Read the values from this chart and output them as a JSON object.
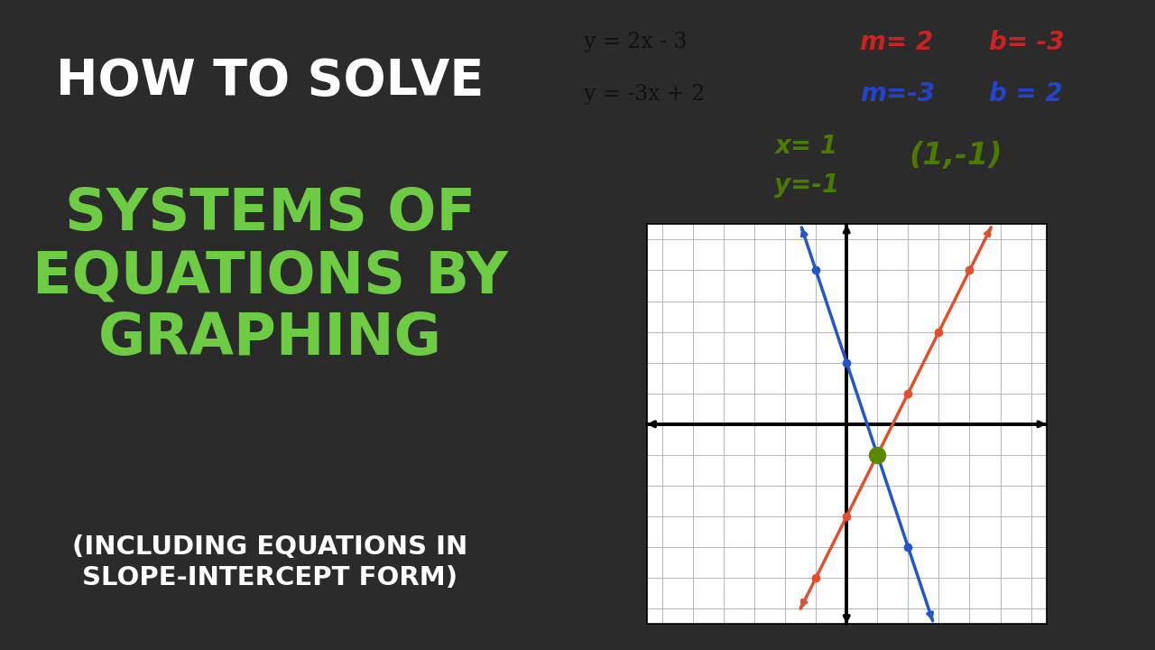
{
  "bg_left": "#2b2b2b",
  "bg_right": "#ffffff",
  "title_line1": "HOW TO SOLVE",
  "title_line2": "SYSTEMS OF\nEQUATIONS BY\nGRAPHING",
  "title_line3": "(INCLUDING EQUATIONS IN\nSLOPE-INTERCEPT FORM)",
  "title_color1": "#ffffff",
  "title_color2": "#6dcc44",
  "title_color3": "#ffffff",
  "eq1": "y = 2x - 3",
  "eq2": "y = -3x + 2",
  "m1_label": "m= 2",
  "b1_label": "b= -3",
  "m2_label": "m=-3",
  "b2_label": "b = 2",
  "sol_x": "x= 1",
  "sol_y": "y=-1",
  "sol_pt": "(1,-1)",
  "eq_color": "#111111",
  "m1_color": "#cc2222",
  "b1_color": "#cc2222",
  "m2_color": "#2244cc",
  "b2_color": "#2244cc",
  "sol_color": "#4a7a00",
  "line1_color": "#e05030",
  "line2_color": "#2255cc",
  "intersect_color": "#5a8a00",
  "grid_range": [
    -6,
    6
  ],
  "line1_slope": 2,
  "line1_intercept": -3,
  "line2_slope": -3,
  "line2_intercept": 2,
  "intersect": [
    1,
    -1
  ]
}
